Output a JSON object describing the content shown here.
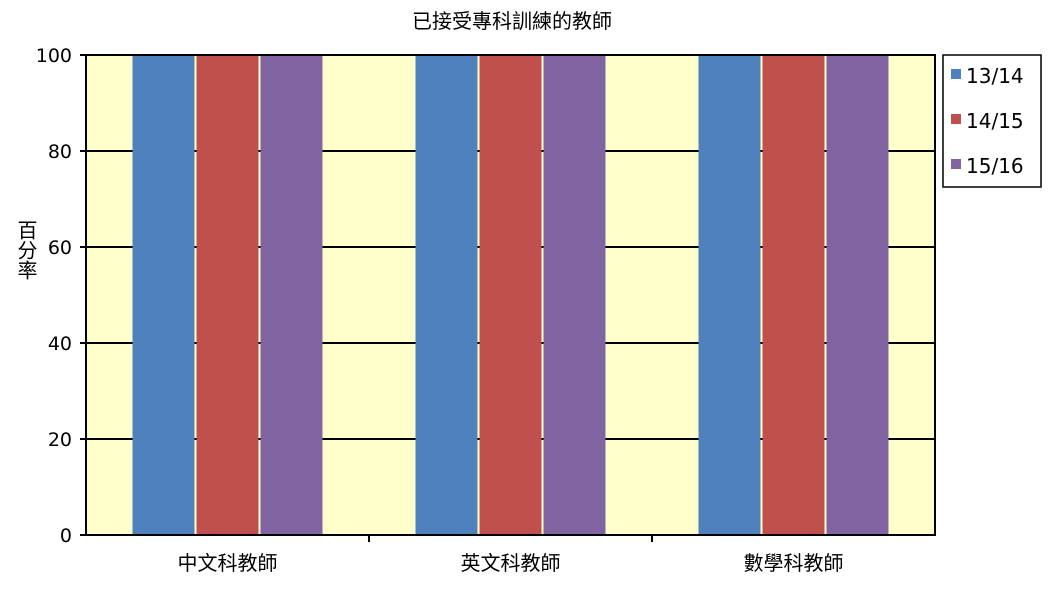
{
  "chart_data": {
    "type": "bar",
    "title": "已接受專科訓練的教師",
    "ylabel": "百分率",
    "xlabel": "",
    "categories": [
      "中文科教師",
      "英文科教師",
      "數學科教師"
    ],
    "series": [
      {
        "name": "13/14",
        "values": [
          100,
          100,
          100
        ],
        "color": "#4f81bd"
      },
      {
        "name": "14/15",
        "values": [
          100,
          100,
          100
        ],
        "color": "#c0504d"
      },
      {
        "name": "15/16",
        "values": [
          100,
          100,
          100
        ],
        "color": "#8064a2"
      }
    ],
    "ylim": [
      0,
      100
    ],
    "yticks": [
      "0",
      "20",
      "40",
      "60",
      "80",
      "100"
    ],
    "grid": true,
    "legend_position": "right",
    "plot_background": "#ffffcc"
  }
}
